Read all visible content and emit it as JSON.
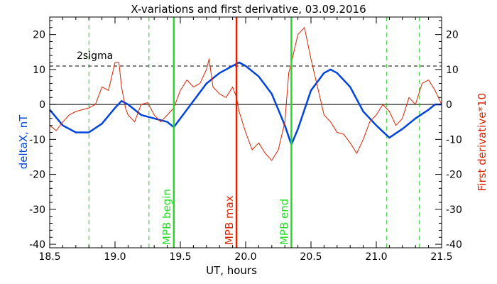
{
  "chart_data": {
    "type": "line",
    "title": "X-variations and first derivative, 03.09.2016",
    "xlabel": "UT, hours",
    "ylabel_left": "deltaX, nT",
    "ylabel_right": "First derivative*10",
    "xlim": [
      18.5,
      21.5
    ],
    "ylim": [
      -41,
      25
    ],
    "x_ticks": [
      "18.5",
      "19.0",
      "19.5",
      "20.0",
      "20.5",
      "21.0",
      "21.5"
    ],
    "y_ticks": [
      "20",
      "10",
      "0",
      "-10",
      "-20",
      "-30",
      "-40"
    ],
    "sigma_label": "2sigma",
    "sigma_level": 11,
    "zero_level": 0,
    "colors": {
      "deltaX": "#0044dd",
      "derivative": "#dd2200",
      "mpb_edges": "#22dd22",
      "mpb_max": "#dd2200",
      "dashed_green": "#22cc22"
    },
    "dashed_verticals": [
      18.8,
      19.26,
      21.08,
      21.33
    ],
    "markers": [
      {
        "label": "MPB begin",
        "x": 19.45,
        "color": "#22dd22"
      },
      {
        "label": "MPB max",
        "x": 19.93,
        "color": "#dd2200"
      },
      {
        "label": "MPB end",
        "x": 20.35,
        "color": "#22dd22"
      }
    ],
    "series": [
      {
        "name": "deltaX, nT",
        "x": [
          18.5,
          18.6,
          18.7,
          18.8,
          18.9,
          19.0,
          19.05,
          19.1,
          19.2,
          19.3,
          19.4,
          19.45,
          19.5,
          19.6,
          19.7,
          19.8,
          19.9,
          19.95,
          20.0,
          20.1,
          20.2,
          20.3,
          20.35,
          20.4,
          20.5,
          20.6,
          20.65,
          20.7,
          20.8,
          20.9,
          21.0,
          21.1,
          21.2,
          21.3,
          21.4,
          21.45,
          21.5
        ],
        "values": [
          -1.5,
          -6,
          -8,
          -8,
          -5.5,
          -1,
          1,
          0,
          -3,
          -4,
          -5,
          -6.5,
          -4,
          1,
          6,
          9,
          11,
          12,
          11,
          8,
          3,
          -6,
          -11.5,
          -7,
          4,
          9,
          10,
          9,
          5,
          -2,
          -6,
          -9.5,
          -7,
          -4,
          -1.5,
          0,
          0
        ]
      },
      {
        "name": "First derivative*10",
        "x": [
          18.5,
          18.55,
          18.6,
          18.65,
          18.7,
          18.75,
          18.8,
          18.85,
          18.9,
          18.95,
          19.0,
          19.03,
          19.05,
          19.08,
          19.1,
          19.15,
          19.2,
          19.25,
          19.3,
          19.35,
          19.4,
          19.45,
          19.5,
          19.55,
          19.6,
          19.65,
          19.7,
          19.72,
          19.75,
          19.8,
          19.85,
          19.9,
          19.93,
          19.95,
          20.0,
          20.05,
          20.1,
          20.15,
          20.2,
          20.25,
          20.3,
          20.33,
          20.35,
          20.4,
          20.45,
          20.5,
          20.55,
          20.6,
          20.65,
          20.7,
          20.75,
          20.8,
          20.85,
          20.9,
          20.95,
          21.0,
          21.05,
          21.1,
          21.15,
          21.2,
          21.25,
          21.3,
          21.35,
          21.4,
          21.45,
          21.5
        ],
        "values": [
          -6,
          -7.5,
          -5,
          -3,
          -2,
          -1.5,
          -1,
          0,
          5,
          4,
          12,
          12,
          5,
          -1,
          -3,
          -5,
          0,
          0.5,
          -3,
          -5,
          -3,
          -1,
          4,
          7,
          5,
          6,
          10,
          13,
          5,
          3,
          2,
          5,
          2,
          -2,
          -8,
          -13,
          -11,
          -14,
          -16,
          -13,
          -5,
          9,
          12,
          20,
          22,
          13,
          5,
          -3,
          -5,
          -8,
          -8.5,
          -11,
          -14,
          -10,
          -5,
          -3,
          0,
          -2,
          -6,
          -4,
          2,
          0,
          6,
          7,
          4,
          0
        ]
      }
    ]
  }
}
